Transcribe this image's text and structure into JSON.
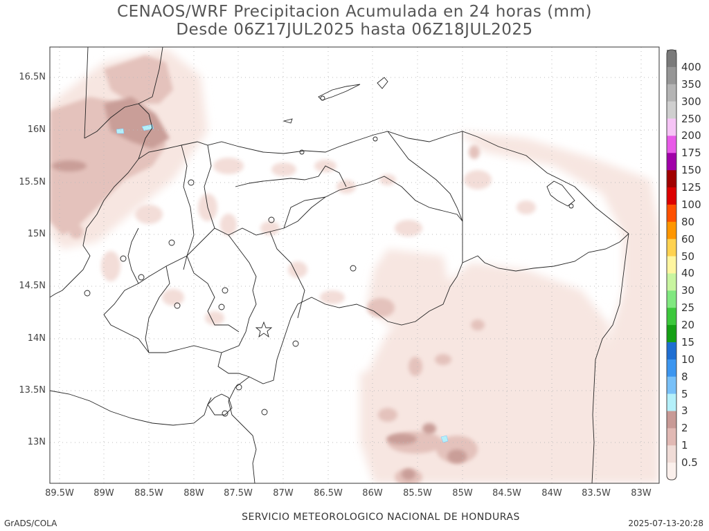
{
  "header": {
    "title_line1": "CENAOS/WRF Precipitacion Acumulada en 24 horas (mm)",
    "title_line2": "Desde 06Z17JUL2025 hasta 06Z18JUL2025"
  },
  "axes": {
    "lat_labels": [
      "16.5N",
      "16N",
      "15.5N",
      "15N",
      "14.5N",
      "14N",
      "13.5N",
      "13N"
    ],
    "lon_labels": [
      "89.5W",
      "89W",
      "88.5W",
      "88W",
      "87.5W",
      "87W",
      "86.5W",
      "86W",
      "85.5W",
      "85W",
      "84.5W",
      "84W",
      "83.5W",
      "83W"
    ]
  },
  "colorbar": {
    "levels": [
      "400",
      "350",
      "300",
      "250",
      "200",
      "175",
      "150",
      "125",
      "100",
      "80",
      "60",
      "50",
      "40",
      "30",
      "25",
      "20",
      "15",
      "10",
      "8",
      "5",
      "3",
      "2",
      "1",
      "0.5"
    ],
    "colors": [
      "#7a7a7a",
      "#969696",
      "#b4b4b4",
      "#cfcfcf",
      "#f6c4f6",
      "#e85ae8",
      "#a000a8",
      "#a00000",
      "#dc0000",
      "#ff5000",
      "#ff9600",
      "#ffd250",
      "#fff6a0",
      "#c8f5a0",
      "#80e880",
      "#3cc83c",
      "#14a014",
      "#1e6ed2",
      "#3c96f0",
      "#78c0f8",
      "#b4f0fa",
      "#c89a96",
      "#e1b9b4",
      "#f0dcd7",
      "#fbf0ec"
    ]
  },
  "footer": {
    "left": "GrADS/COLA",
    "center": "SERVICIO METEOROLOGICO NACIONAL DE HONDURAS",
    "right": "2025-07-13-20:28"
  }
}
